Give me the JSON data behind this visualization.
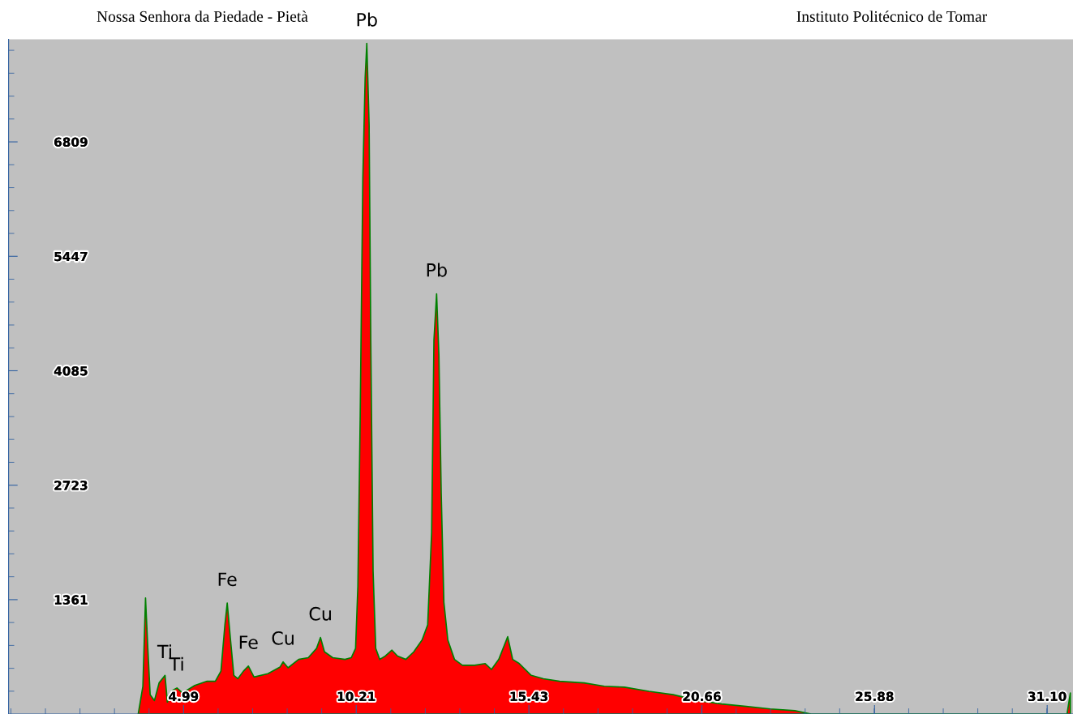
{
  "chart_data": {
    "type": "area",
    "annotations": [
      "Nossa Senhora da Piedade - Pietà",
      "Instituto Politécnico de Tomar",
      {
        "text": "Pb",
        "x": 10.53,
        "y": 7980
      },
      {
        "text": "Pb",
        "x": 12.64,
        "y": 5000
      },
      {
        "text": "Fe",
        "x": 6.31,
        "y": 1320
      },
      {
        "text": "Fe",
        "x": 6.95,
        "y": 570
      },
      {
        "text": "Cu",
        "x": 8.0,
        "y": 620
      },
      {
        "text": "Cu",
        "x": 9.13,
        "y": 910
      },
      {
        "text": "Ti",
        "x": 4.43,
        "y": 460
      },
      {
        "text": "Ti",
        "x": 4.79,
        "y": 310
      }
    ],
    "x": [
      3.62,
      3.76,
      3.84,
      3.91,
      3.98,
      4.11,
      4.25,
      4.43,
      4.5,
      4.65,
      4.79,
      4.96,
      5.33,
      5.7,
      5.95,
      6.12,
      6.24,
      6.31,
      6.41,
      6.51,
      6.63,
      6.8,
      6.95,
      7.12,
      7.54,
      7.91,
      8.0,
      8.15,
      8.47,
      8.76,
      9.01,
      9.13,
      9.25,
      9.5,
      9.87,
      10.06,
      10.19,
      10.26,
      10.33,
      10.41,
      10.48,
      10.53,
      10.6,
      10.65,
      10.72,
      10.8,
      10.92,
      11.09,
      11.29,
      11.46,
      11.71,
      11.95,
      12.2,
      12.37,
      12.49,
      12.56,
      12.64,
      12.71,
      12.78,
      12.86,
      12.98,
      13.18,
      13.42,
      13.79,
      14.11,
      14.3,
      14.52,
      14.79,
      14.94,
      15.14,
      15.5,
      15.87,
      16.36,
      17.1,
      17.71,
      18.32,
      19.06,
      19.79,
      20.53,
      21.26,
      22.0,
      22.73,
      23.47,
      23.96,
      31.7,
      31.8
    ],
    "series": [
      {
        "color": "#ff0000",
        "values": [
          0,
          330,
          1380,
          780,
          230,
          160,
          370,
          460,
          140,
          280,
          310,
          250,
          340,
          390,
          390,
          510,
          1060,
          1320,
          880,
          460,
          420,
          510,
          570,
          440,
          480,
          560,
          620,
          550,
          650,
          670,
          780,
          910,
          740,
          670,
          650,
          670,
          780,
          1520,
          3530,
          6380,
          7570,
          7980,
          7020,
          4450,
          1700,
          780,
          650,
          690,
          760,
          690,
          650,
          740,
          880,
          1060,
          2160,
          4450,
          5000,
          4270,
          2620,
          1330,
          880,
          650,
          580,
          580,
          600,
          530,
          650,
          920,
          650,
          600,
          460,
          420,
          390,
          370,
          330,
          320,
          270,
          230,
          160,
          120,
          90,
          60,
          40,
          0,
          0,
          250
        ]
      }
    ],
    "xlim": [
      -0.3,
      31.88
    ],
    "ylim": [
      0,
      8030
    ],
    "xticks": [
      4.99,
      10.21,
      15.43,
      20.66,
      25.88,
      {
        "value": 31.1,
        "label": "31.10"
      }
    ],
    "yticks": [
      1361,
      2723,
      4085,
      5447,
      6809
    ],
    "grid": false
  }
}
